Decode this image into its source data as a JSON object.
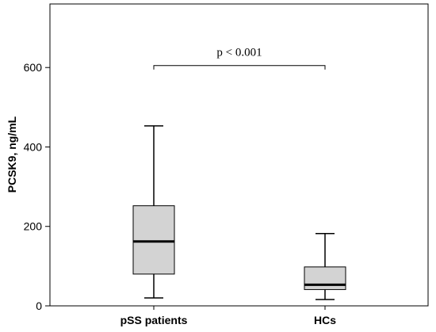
{
  "chart_data": {
    "type": "box",
    "ylabel": "PCSK9, ng/mL",
    "ylim": [
      0,
      760
    ],
    "yticks": [
      0,
      200,
      400,
      600
    ],
    "grid": false,
    "categories": [
      "pSS patients",
      "HCs"
    ],
    "boxes": [
      {
        "category": "pSS patients",
        "whisker_low": 20,
        "q1": 80,
        "median": 162,
        "q3": 252,
        "whisker_high": 453
      },
      {
        "category": "HCs",
        "whisker_low": 16,
        "q1": 41,
        "median": 53,
        "q3": 98,
        "whisker_high": 182
      }
    ],
    "annotation": {
      "text": "p < 0.001",
      "from": "pSS patients",
      "to": "HCs",
      "y": 605
    },
    "colors": {
      "box_fill": "#d3d3d3",
      "line": "#000000",
      "background": "#ffffff"
    }
  }
}
